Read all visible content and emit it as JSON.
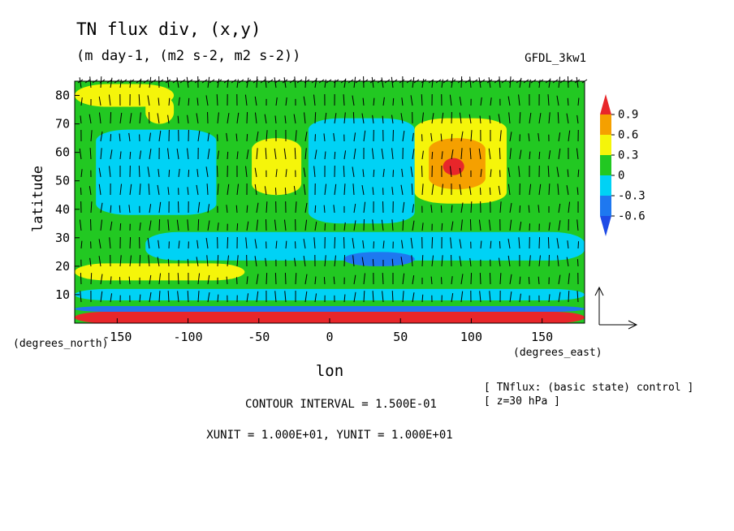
{
  "chart_data": {
    "type": "heatmap",
    "title": "TN flux div, (x,y)",
    "subtitle": "(m day-1, (m2 s-2, m2 s-2))",
    "model_label": "GFDL_3kw1",
    "xlabel": "lon",
    "ylabel": "latitude",
    "x_unit_label": "(degrees_east)",
    "y_unit_label": "(degrees_north)",
    "xlim": [
      -180,
      180
    ],
    "ylim": [
      0,
      85
    ],
    "x_ticks": [
      -150,
      -100,
      -50,
      0,
      50,
      100,
      150
    ],
    "x_tick_labels": [
      "-150",
      "-100",
      "-50",
      "0",
      "50",
      "100",
      "150"
    ],
    "y_ticks": [
      10,
      20,
      30,
      40,
      50,
      60,
      70,
      80
    ],
    "y_tick_labels": [
      "10",
      "20",
      "30",
      "40",
      "50",
      "60",
      "70",
      "80"
    ],
    "colorbar": {
      "levels": [
        0.9,
        0.6,
        0.3,
        0,
        -0.3,
        -0.6
      ],
      "labels": [
        "0.9",
        "0.6",
        "0.3",
        "0",
        "-0.3",
        "-0.6"
      ],
      "colors": [
        "#e8262a",
        "#f5a000",
        "#f5f50a",
        "#22c822",
        "#00d2f5",
        "#1e78f0",
        "#1e4be6"
      ]
    },
    "regions": [
      {
        "level": -0.3,
        "lon": [
          -165,
          -80
        ],
        "lat": [
          38,
          68
        ]
      },
      {
        "level": -0.3,
        "lon": [
          -15,
          60
        ],
        "lat": [
          35,
          72
        ]
      },
      {
        "level": 0.3,
        "lon": [
          -55,
          -20
        ],
        "lat": [
          45,
          65
        ]
      },
      {
        "level": 0.3,
        "lon": [
          -130,
          -110
        ],
        "lat": [
          70,
          80
        ]
      },
      {
        "level": 0.3,
        "lon": [
          -180,
          -60
        ],
        "lat": [
          15,
          21
        ]
      },
      {
        "level": 0.3,
        "lon": [
          -180,
          -110
        ],
        "lat": [
          76,
          84
        ]
      },
      {
        "level": 0.3,
        "lon": [
          60,
          125
        ],
        "lat": [
          42,
          72
        ]
      },
      {
        "level": 0.6,
        "lon": [
          70,
          110
        ],
        "lat": [
          47,
          65
        ]
      },
      {
        "level": 0.9,
        "lon": [
          80,
          95
        ],
        "lat": [
          52,
          58
        ]
      },
      {
        "level": -0.3,
        "lon": [
          -130,
          180
        ],
        "lat": [
          22,
          32
        ]
      },
      {
        "level": -0.6,
        "lon": [
          10,
          60
        ],
        "lat": [
          20,
          25
        ]
      },
      {
        "level": -0.3,
        "lon": [
          -180,
          180
        ],
        "lat": [
          8,
          12
        ]
      },
      {
        "level": 0.9,
        "lon": [
          -180,
          180
        ],
        "lat": [
          0,
          4
        ]
      },
      {
        "level": -0.6,
        "lon": [
          -180,
          180
        ],
        "lat": [
          4,
          6
        ]
      }
    ],
    "contour_interval_text": "CONTOUR INTERVAL = 1.500E-01",
    "vector_unit_text": "XUNIT = 1.000E+01, YUNIT = 1.000E+01",
    "annotation_line1": "[ TNflux: (basic state) control ]",
    "annotation_line2": "[ z=30 hPa ]"
  }
}
